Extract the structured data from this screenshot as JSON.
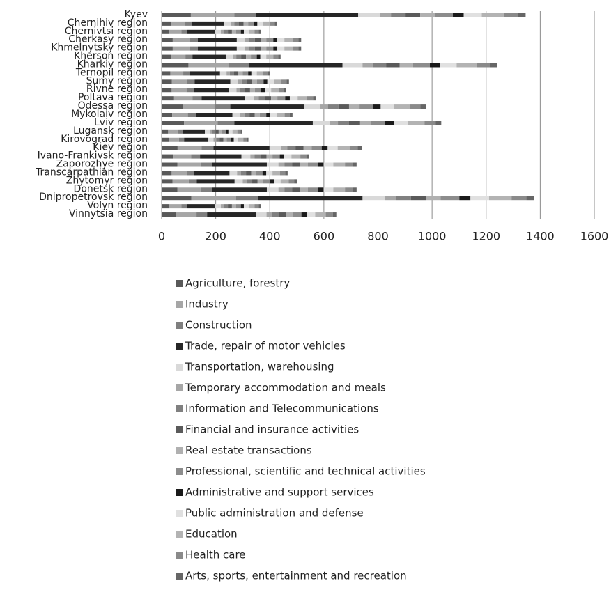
{
  "chart_data": {
    "type": "stacked_bar_horizontal",
    "categories": [
      "Kyev",
      "Chernihiv region",
      "Chernivtsi region",
      "Cherkasy region",
      "Khmelnytsky region",
      "Kherson region",
      "Kharkiv region",
      "Ternopil region",
      "Sumy region",
      "Rivne region",
      "Poltava region",
      "Odessa region",
      "Mykolaiv region",
      "Lviv region",
      "Lugansk region",
      "Kirovograd region",
      "Kiev region",
      "Ivano-Frankivsk region",
      "Zaporozhye region",
      "Transcarpathian region",
      "Zhytomyr region",
      "Donetsk region",
      "Dnipropetrovsk region",
      "Volyn region",
      "Vinnytsia region"
    ],
    "xlim": [
      0,
      1600
    ],
    "xticks": [
      0,
      200,
      400,
      600,
      800,
      1000,
      1200,
      1400,
      1600
    ],
    "grid": true,
    "legend": "bottom",
    "series": [
      {
        "name": "Agriculture, forestry",
        "color": "#595959",
        "values": [
          108,
          34,
          29,
          41,
          41,
          35,
          99,
          32,
          38,
          37,
          46,
          78,
          39,
          83,
          24,
          26,
          59,
          44,
          58,
          37,
          40,
          58,
          110,
          29,
          52
        ]
      },
      {
        "name": "Industry",
        "color": "#a6a6a6",
        "values": [
          161,
          51,
          44,
          62,
          62,
          53,
          149,
          48,
          56,
          55,
          68,
          117,
          58,
          124,
          35,
          38,
          89,
          65,
          86,
          56,
          60,
          86,
          165,
          44,
          77
        ]
      },
      {
        "name": "Construction",
        "color": "#7f7f7f",
        "values": [
          81,
          26,
          22,
          31,
          31,
          26,
          74,
          24,
          28,
          28,
          34,
          59,
          29,
          62,
          18,
          19,
          44,
          33,
          43,
          28,
          30,
          43,
          83,
          22,
          39
        ]
      },
      {
        "name": "Trade, repair of motor vehicles",
        "color": "#262626",
        "values": [
          377,
          119,
          102,
          144,
          144,
          123,
          347,
          112,
          132,
          129,
          160,
          273,
          136,
          290,
          83,
          90,
          207,
          153,
          202,
          130,
          140,
          202,
          385,
          102,
          181
        ]
      },
      {
        "name": "Transportation, warehousing",
        "color": "#d9d9d9",
        "values": [
          81,
          26,
          22,
          31,
          31,
          26,
          74,
          24,
          28,
          28,
          34,
          59,
          29,
          62,
          18,
          19,
          44,
          33,
          43,
          28,
          30,
          43,
          83,
          22,
          39
        ]
      },
      {
        "name": "Temporary accommodation and meals",
        "color": "#a6a6a6",
        "values": [
          40,
          13,
          11,
          15,
          15,
          13,
          37,
          12,
          14,
          14,
          17,
          29,
          15,
          31,
          9,
          10,
          22,
          16,
          22,
          14,
          15,
          22,
          41,
          11,
          19
        ]
      },
      {
        "name": "Information and Telecommunications",
        "color": "#808080",
        "values": [
          54,
          17,
          15,
          21,
          21,
          18,
          50,
          16,
          19,
          18,
          23,
          39,
          19,
          41,
          12,
          13,
          30,
          22,
          29,
          19,
          20,
          29,
          55,
          15,
          26
        ]
      },
      {
        "name": "Financial and insurance activities",
        "color": "#5a5a5a",
        "values": [
          54,
          17,
          15,
          21,
          21,
          18,
          50,
          16,
          19,
          18,
          23,
          39,
          19,
          41,
          12,
          13,
          30,
          22,
          29,
          19,
          20,
          29,
          55,
          15,
          26
        ]
      },
      {
        "name": "Real estate transactions",
        "color": "#b0b0b0",
        "values": [
          54,
          17,
          15,
          21,
          21,
          18,
          50,
          16,
          19,
          18,
          23,
          39,
          19,
          41,
          12,
          13,
          30,
          22,
          29,
          19,
          20,
          29,
          55,
          15,
          26
        ]
      },
      {
        "name": "Professional, scientific and technical activities",
        "color": "#8c8c8c",
        "values": [
          67,
          21,
          18,
          26,
          26,
          22,
          62,
          20,
          24,
          23,
          29,
          49,
          24,
          52,
          15,
          16,
          37,
          27,
          36,
          23,
          25,
          36,
          69,
          18,
          32
        ]
      },
      {
        "name": "Administrative and support services",
        "color": "#1a1a1a",
        "values": [
          40,
          13,
          11,
          15,
          15,
          13,
          37,
          12,
          14,
          14,
          17,
          29,
          15,
          31,
          9,
          10,
          22,
          16,
          22,
          14,
          15,
          22,
          41,
          11,
          19
        ]
      },
      {
        "name": "Public administration and defense",
        "color": "#e0e0e0",
        "values": [
          67,
          21,
          18,
          26,
          26,
          22,
          62,
          20,
          24,
          23,
          29,
          49,
          24,
          52,
          15,
          16,
          37,
          27,
          36,
          23,
          25,
          36,
          69,
          18,
          32
        ]
      },
      {
        "name": "Education",
        "color": "#b3b3b3",
        "values": [
          81,
          26,
          22,
          31,
          31,
          26,
          74,
          24,
          28,
          28,
          34,
          59,
          29,
          62,
          18,
          19,
          44,
          33,
          43,
          28,
          30,
          43,
          83,
          22,
          39
        ]
      },
      {
        "name": "Health care",
        "color": "#8a8a8a",
        "values": [
          54,
          17,
          15,
          21,
          21,
          18,
          50,
          16,
          19,
          18,
          23,
          39,
          19,
          41,
          12,
          13,
          30,
          22,
          29,
          19,
          20,
          29,
          55,
          15,
          26
        ]
      },
      {
        "name": "Arts, sports, entertainment and recreation",
        "color": "#666666",
        "values": [
          27,
          8,
          7,
          10,
          10,
          9,
          25,
          8,
          9,
          9,
          11,
          20,
          10,
          21,
          6,
          6,
          15,
          11,
          14,
          9,
          10,
          14,
          28,
          7,
          13
        ]
      }
    ]
  }
}
